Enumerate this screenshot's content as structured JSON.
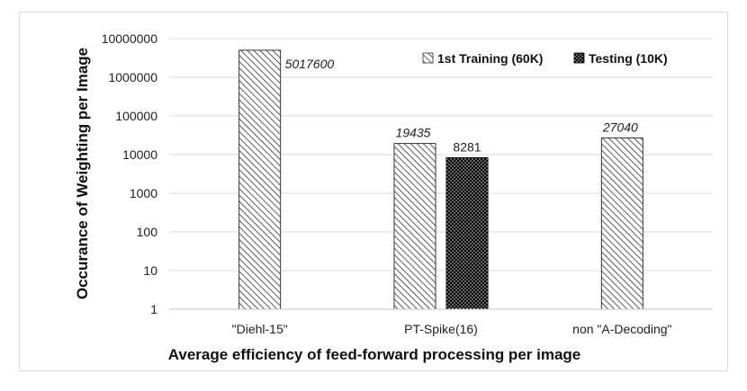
{
  "chart_data": {
    "type": "bar",
    "scale": "log10",
    "title": "",
    "xlabel": "Average efficiency of feed-forward processing per image",
    "ylabel": "Occurance of Weighting per Image",
    "ylim": [
      1,
      10000000
    ],
    "yticks": [
      "10000000",
      "1000000",
      "100000",
      "10000",
      "1000",
      "100",
      "10",
      "1"
    ],
    "categories": [
      "\"Diehl-15\"",
      "PT-Spike(16)",
      "non \"A-Decoding\""
    ],
    "series": [
      {
        "name": "1st Training (60K)",
        "pattern": "diagonal-hatch",
        "values": [
          5017600,
          19435,
          27040
        ],
        "labels": [
          "5017600",
          "19435",
          "27040"
        ]
      },
      {
        "name": "Testing (10K)",
        "pattern": "dotted-black",
        "values": [
          null,
          8281,
          null
        ],
        "labels": [
          null,
          "8281",
          null
        ]
      }
    ],
    "legend_position": "top-right",
    "grid": true
  }
}
